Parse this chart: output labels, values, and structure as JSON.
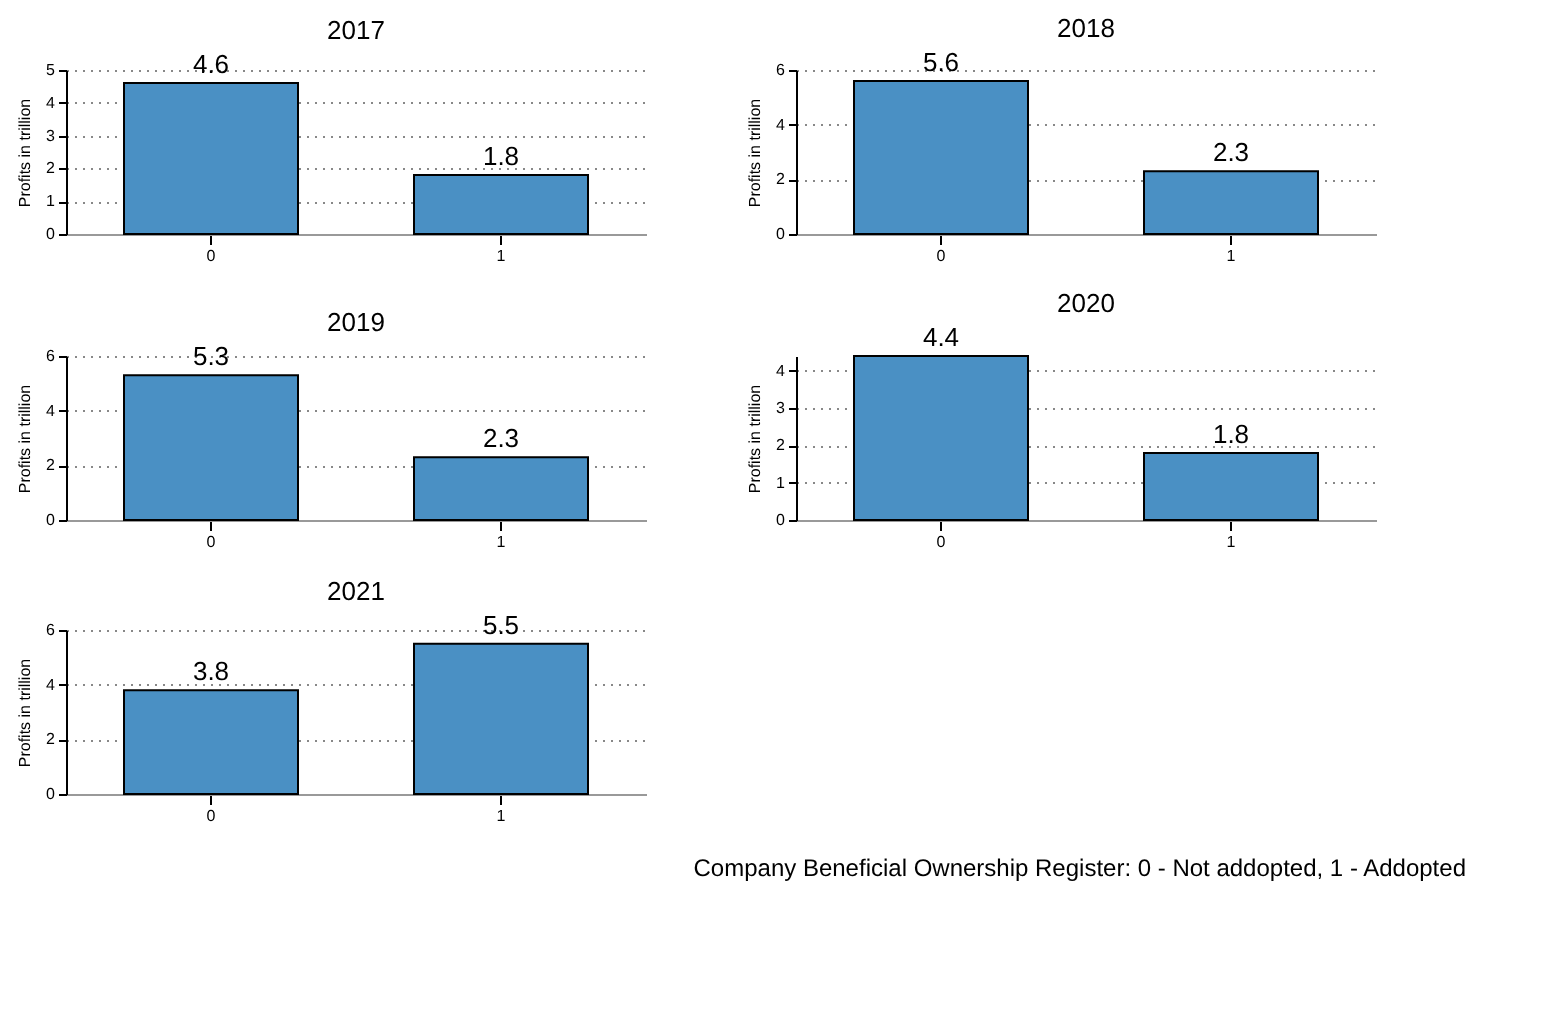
{
  "chart_data": [
    {
      "type": "bar",
      "title": "2017",
      "ylabel": "Profits in trillion",
      "categories": [
        "0",
        "1"
      ],
      "values": [
        4.6,
        1.8
      ],
      "color": "#4a90c4",
      "ylim": [
        0,
        5
      ],
      "yticks": [
        0,
        1,
        2,
        3,
        4,
        5
      ],
      "grid": "y",
      "data_labels": true
    },
    {
      "type": "bar",
      "title": "2018",
      "ylabel": "Profits in trillion",
      "categories": [
        "0",
        "1"
      ],
      "values": [
        5.6,
        2.3
      ],
      "color": "#4a90c4",
      "ylim": [
        0,
        6
      ],
      "yticks": [
        0,
        2,
        4,
        6
      ],
      "grid": "y",
      "data_labels": true
    },
    {
      "type": "bar",
      "title": "2019",
      "ylabel": "Profits in trillion",
      "categories": [
        "0",
        "1"
      ],
      "values": [
        5.3,
        2.3
      ],
      "color": "#4a90c4",
      "ylim": [
        0,
        6
      ],
      "yticks": [
        0,
        2,
        4,
        6
      ],
      "grid": "y",
      "data_labels": true
    },
    {
      "type": "bar",
      "title": "2020",
      "ylabel": "Profits in trillion",
      "categories": [
        "0",
        "1"
      ],
      "values": [
        4.4,
        1.8
      ],
      "color": "#4a90c4",
      "ylim": [
        0,
        4.4
      ],
      "yticks": [
        0,
        1,
        2,
        3,
        4
      ],
      "grid": "y",
      "data_labels": true
    },
    {
      "type": "bar",
      "title": "2021",
      "ylabel": "Profits in trillion",
      "categories": [
        "0",
        "1"
      ],
      "values": [
        3.8,
        5.5
      ],
      "color": "#4a90c4",
      "ylim": [
        0,
        6
      ],
      "yticks": [
        0,
        2,
        4,
        6
      ],
      "grid": "y",
      "data_labels": true,
      "annotations": [
        "Company Beneficial Ownership Register: 0 - Not addopted, 1 - Addopted"
      ]
    }
  ]
}
